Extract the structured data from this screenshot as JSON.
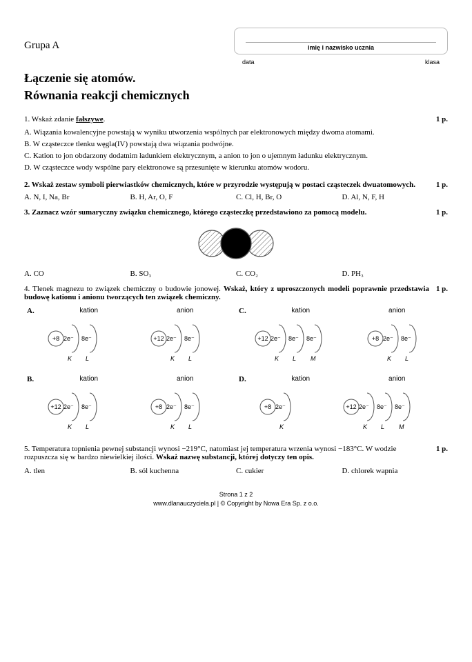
{
  "header": {
    "group": "Grupa A",
    "name_caption": "imię i nazwisko ucznia",
    "date_label": "data",
    "class_label": "klasa"
  },
  "title_line1": "Łączenie się atomów.",
  "title_line2": "Równania reakcji chemicznych",
  "q1": {
    "prompt_prefix": "1. Wskaż zdanie ",
    "prompt_underlined": "fałszywe",
    "prompt_suffix": ".",
    "points": "1 p.",
    "A": "A. Wiązania kowalencyjne powstają w wyniku utworzenia wspólnych par elektronowych między dwoma atomami.",
    "B": "B. W cząsteczce tlenku węgla(IV) powstają dwa wiązania podwójne.",
    "C": "C. Kation to jon obdarzony dodatnim ładunkiem elektrycznym, a anion to jon o ujemnym ładunku elektrycznym.",
    "D": "D. W cząsteczce wody wspólne pary elektronowe są przesunięte w kierunku atomów wodoru."
  },
  "q2": {
    "prompt": "2. Wskaż zestaw symboli pierwiastków chemicznych, które w przyrodzie występują w postaci cząsteczek dwuatomowych.",
    "points": "1 p.",
    "A": "A. N, I, Na, Br",
    "B": "B. H, Ar, O, F",
    "C": "C. Cl, H, Br, O",
    "D": "D. Al, N, F, H"
  },
  "q3": {
    "prompt": "3. Zaznacz wzór sumaryczny związku chemicznego, którego cząsteczkę przedstawiono za pomocą modelu.",
    "points": "1 p.",
    "A": "A. CO",
    "B": "B. SO₃",
    "C": "C. CO₂",
    "D": "D. PH₃",
    "model": {
      "radius_outer": 19,
      "radius_center": 22,
      "stroke": "#555",
      "fill_center": "#000",
      "hatch_spacing": 5
    }
  },
  "q4": {
    "prompt": "4. Tlenek magnezu to związek chemiczny o budowie jonowej. Wskaż, który z uproszczonych modeli poprawnie przedstawia budowę kationu i anionu tworzących ten związek chemiczny.",
    "points": "1 p.",
    "kation_label": "kation",
    "anion_label": "anion",
    "shell_font": 9,
    "nucleus_r": 11,
    "stroke": "#555",
    "cells": {
      "A": {
        "kation": {
          "nucleus": "+8",
          "shells": [
            "2e⁻",
            "8e⁻"
          ],
          "letters": [
            "K",
            "L"
          ]
        },
        "anion": {
          "nucleus": "+12",
          "shells": [
            "2e⁻",
            "8e⁻"
          ],
          "letters": [
            "K",
            "L"
          ]
        }
      },
      "B": {
        "kation": {
          "nucleus": "+12",
          "shells": [
            "2e⁻",
            "8e⁻"
          ],
          "letters": [
            "K",
            "L"
          ]
        },
        "anion": {
          "nucleus": "+8",
          "shells": [
            "2e⁻",
            "8e⁻"
          ],
          "letters": [
            "K",
            "L"
          ]
        }
      },
      "C": {
        "kation": {
          "nucleus": "+12",
          "shells": [
            "2e⁻",
            "8e⁻",
            "8e⁻"
          ],
          "letters": [
            "K",
            "L",
            "M"
          ]
        },
        "anion": {
          "nucleus": "+8",
          "shells": [
            "2e⁻",
            "8e⁻"
          ],
          "letters": [
            "K",
            "L"
          ]
        }
      },
      "D": {
        "kation": {
          "nucleus": "+8",
          "shells": [
            "2e⁻"
          ],
          "letters": [
            "K"
          ]
        },
        "anion": {
          "nucleus": "+12",
          "shells": [
            "2e⁻",
            "8e⁻",
            "8e⁻"
          ],
          "letters": [
            "K",
            "L",
            "M"
          ]
        }
      }
    }
  },
  "q5": {
    "prompt": "5. Temperatura topnienia pewnej substancji wynosi −219°C, natomiast jej temperatura wrzenia wynosi −183°C. W wodzie rozpuszcza się w bardzo niewielkiej ilości. Wskaż nazwę substancji, której dotyczy ten opis.",
    "points": "1 p.",
    "A": "A. tlen",
    "B": "B. sól kuchenna",
    "C": "C. cukier",
    "D": "D. chlorek wapnia"
  },
  "footer": {
    "page": "Strona 1 z 2",
    "copyright": "www.dlanauczyciela.pl | © Copyright by Nowa Era Sp. z o.o."
  }
}
